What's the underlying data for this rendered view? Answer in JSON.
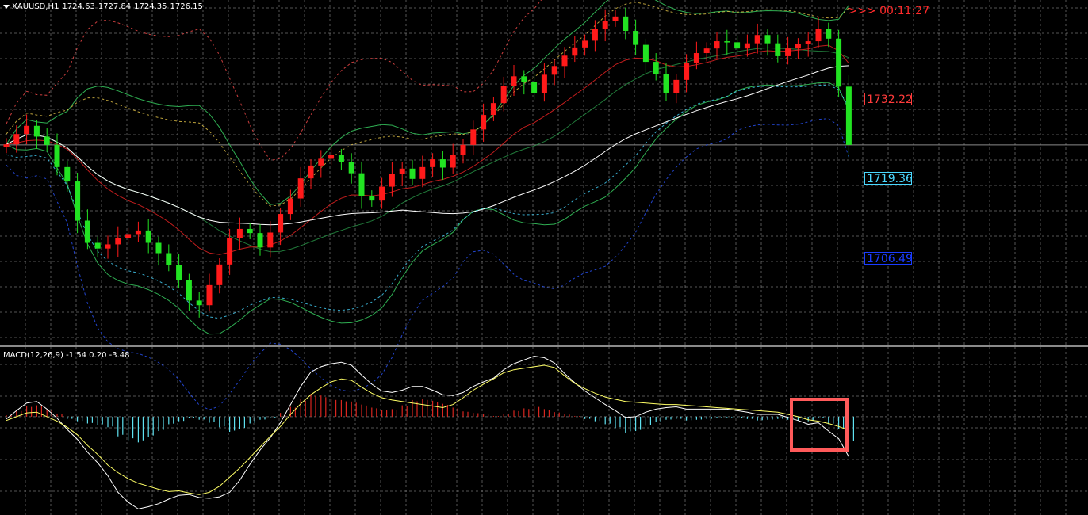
{
  "header": {
    "symbol": "XAUUSD,H1",
    "open": "1724.63",
    "high": "1727.84",
    "low": "1724.35",
    "close": "1726.15"
  },
  "timer": ">>> 00:11:27",
  "macd_header": "MACD(12,26,9) -1.54 0.20 -3.48",
  "price_tags": [
    "1732.22",
    "1719.36",
    "1706.49"
  ],
  "colors": {
    "background": "#000000",
    "grid": "#9a9a9a",
    "bull_candle": "#ff1a1a",
    "bear_candle": "#22e322",
    "bollinger": "#2fae52",
    "ema": "#c21d1d",
    "sma": "#ffffff",
    "support": "#46d6ff",
    "macd_pos": "#d9261f",
    "macd_neg": "#5fe1f0",
    "macd_signal": "#ffff66",
    "macd_line": "#ffffff",
    "highlight": "#ff5a5a"
  },
  "chart_data": [
    {
      "type": "line",
      "title": "XAUUSD,H1",
      "series": [
        {
          "name": "Close",
          "values": [
            1724.0,
            1726.0,
            1727.6,
            1725.5,
            1723.9,
            1719.6,
            1716.8,
            1709.2,
            1704.9,
            1703.8,
            1704.6,
            1705.9,
            1706.6,
            1707.3,
            1704.9,
            1702.9,
            1700.6,
            1697.7,
            1693.7,
            1692.8,
            1696.7,
            1700.7,
            1705.9,
            1707.6,
            1706.8,
            1704.0,
            1706.9,
            1710.5,
            1713.5,
            1717.4,
            1719.9,
            1721.2,
            1721.9,
            1720.6,
            1718.4,
            1713.9,
            1713.1,
            1715.8,
            1718.3,
            1719.3,
            1717.3,
            1719.6,
            1721.1,
            1719.5,
            1721.9,
            1723.9,
            1726.9,
            1729.7,
            1732.0,
            1735.4,
            1737.2,
            1736.1,
            1733.9,
            1737.5,
            1739.2,
            1741.2,
            1742.8,
            1744.1,
            1746.4,
            1748.0,
            1748.8,
            1746.0,
            1743.3,
            1740.0,
            1737.6,
            1734.0,
            1736.5,
            1739.8,
            1741.7,
            1742.6,
            1744.0,
            1743.8,
            1742.6,
            1743.6,
            1745.2,
            1743.6,
            1741.1,
            1742.6,
            1743.4,
            1744.0,
            1746.4,
            1744.5,
            1735.2,
            1723.9
          ]
        },
        {
          "name": "Support",
          "values": []
        }
      ],
      "ylim": [
        1685,
        1752
      ],
      "price_labels": [
        1732.22,
        1719.36,
        1706.49
      ],
      "grid": true
    },
    {
      "type": "bar",
      "title": "MACD(12,26,9) -1.54 0.20 -3.48",
      "series": [
        {
          "name": "Histogram",
          "values": [
            0.2,
            0.8,
            1.4,
            1.5,
            1.0,
            0.4,
            -0.3,
            -0.6,
            -0.9,
            -1.1,
            -1.4,
            -2.6,
            -3.1,
            -3.4,
            -2.7,
            -1.9,
            -1.0,
            -0.6,
            -0.2,
            -0.4,
            -0.8,
            -1.4,
            -2.0,
            -1.6,
            -0.9,
            -0.4,
            -0.2,
            0.5,
            1.3,
            2.3,
            3.0,
            2.8,
            2.4,
            2.2,
            2.0,
            1.6,
            1.2,
            0.9,
            1.0,
            1.5,
            2.2,
            2.4,
            2.1,
            1.7,
            1.2,
            0.7,
            0.5,
            0.3,
            0.1,
            0.4,
            0.8,
            1.1,
            1.4,
            1.0,
            0.6,
            0.3,
            0.1,
            -0.3,
            -0.6,
            -1.0,
            -1.5,
            -2.1,
            -1.9,
            -1.2,
            -0.7,
            -0.4,
            -0.3,
            -0.5,
            -0.4,
            -0.3,
            -0.2,
            -0.1,
            -0.2,
            -0.3,
            -0.5,
            -0.4,
            -0.3,
            -0.4,
            -0.5,
            -0.6,
            -0.2,
            -1.0,
            -1.6,
            -3.5
          ]
        },
        {
          "name": "Signal",
          "values": [
            -0.5,
            0.0,
            0.5,
            0.6,
            0.0,
            -0.6,
            -1.4,
            -2.4,
            -3.8,
            -5.0,
            -6.4,
            -7.4,
            -8.2,
            -8.8,
            -9.2,
            -9.6,
            -9.9,
            -9.8,
            -10.1,
            -10.3,
            -10.0,
            -9.2,
            -8.0,
            -6.8,
            -5.4,
            -4.0,
            -2.6,
            -1.3,
            0.3,
            1.7,
            2.9,
            3.8,
            4.6,
            5.0,
            4.8,
            3.9,
            3.1,
            2.5,
            2.2,
            2.0,
            1.8,
            1.6,
            1.4,
            1.2,
            1.6,
            2.5,
            3.5,
            4.3,
            5.0,
            5.8,
            6.2,
            6.4,
            6.6,
            6.8,
            6.5,
            5.4,
            4.4,
            3.7,
            3.1,
            2.6,
            2.3,
            2.0,
            1.9,
            1.8,
            1.7,
            1.6,
            1.6,
            1.5,
            1.4,
            1.3,
            1.2,
            1.1,
            1.0,
            0.9,
            0.8,
            0.7,
            0.6,
            0.3,
            0.0,
            -0.4,
            -0.6,
            -0.9,
            -1.3,
            -1.8
          ]
        },
        {
          "name": "MACD",
          "values": [
            -0.3,
            0.8,
            1.8,
            2.0,
            1.0,
            -0.2,
            -1.7,
            -3.0,
            -4.7,
            -6.1,
            -7.8,
            -10.0,
            -11.3,
            -12.2,
            -11.9,
            -11.5,
            -10.9,
            -10.4,
            -10.3,
            -10.7,
            -10.8,
            -10.6,
            -10.0,
            -8.4,
            -6.3,
            -4.4,
            -2.8,
            -0.8,
            1.6,
            4.0,
            5.9,
            6.6,
            7.0,
            7.2,
            6.8,
            5.5,
            4.3,
            3.4,
            3.2,
            3.5,
            4.0,
            4.0,
            3.5,
            2.9,
            2.8,
            3.2,
            4.0,
            4.6,
            5.1,
            6.2,
            7.0,
            7.5,
            8.0,
            7.8,
            7.1,
            5.7,
            4.5,
            3.4,
            2.5,
            1.6,
            0.8,
            -0.1,
            0.0,
            0.6,
            1.0,
            1.2,
            1.3,
            1.0,
            1.0,
            1.0,
            1.0,
            1.0,
            0.8,
            0.6,
            0.3,
            0.3,
            0.3,
            -0.1,
            -0.5,
            -1.0,
            -0.8,
            -1.9,
            -2.9,
            -5.3
          ]
        }
      ],
      "ylim": [
        -13,
        9
      ],
      "grid": true
    }
  ]
}
